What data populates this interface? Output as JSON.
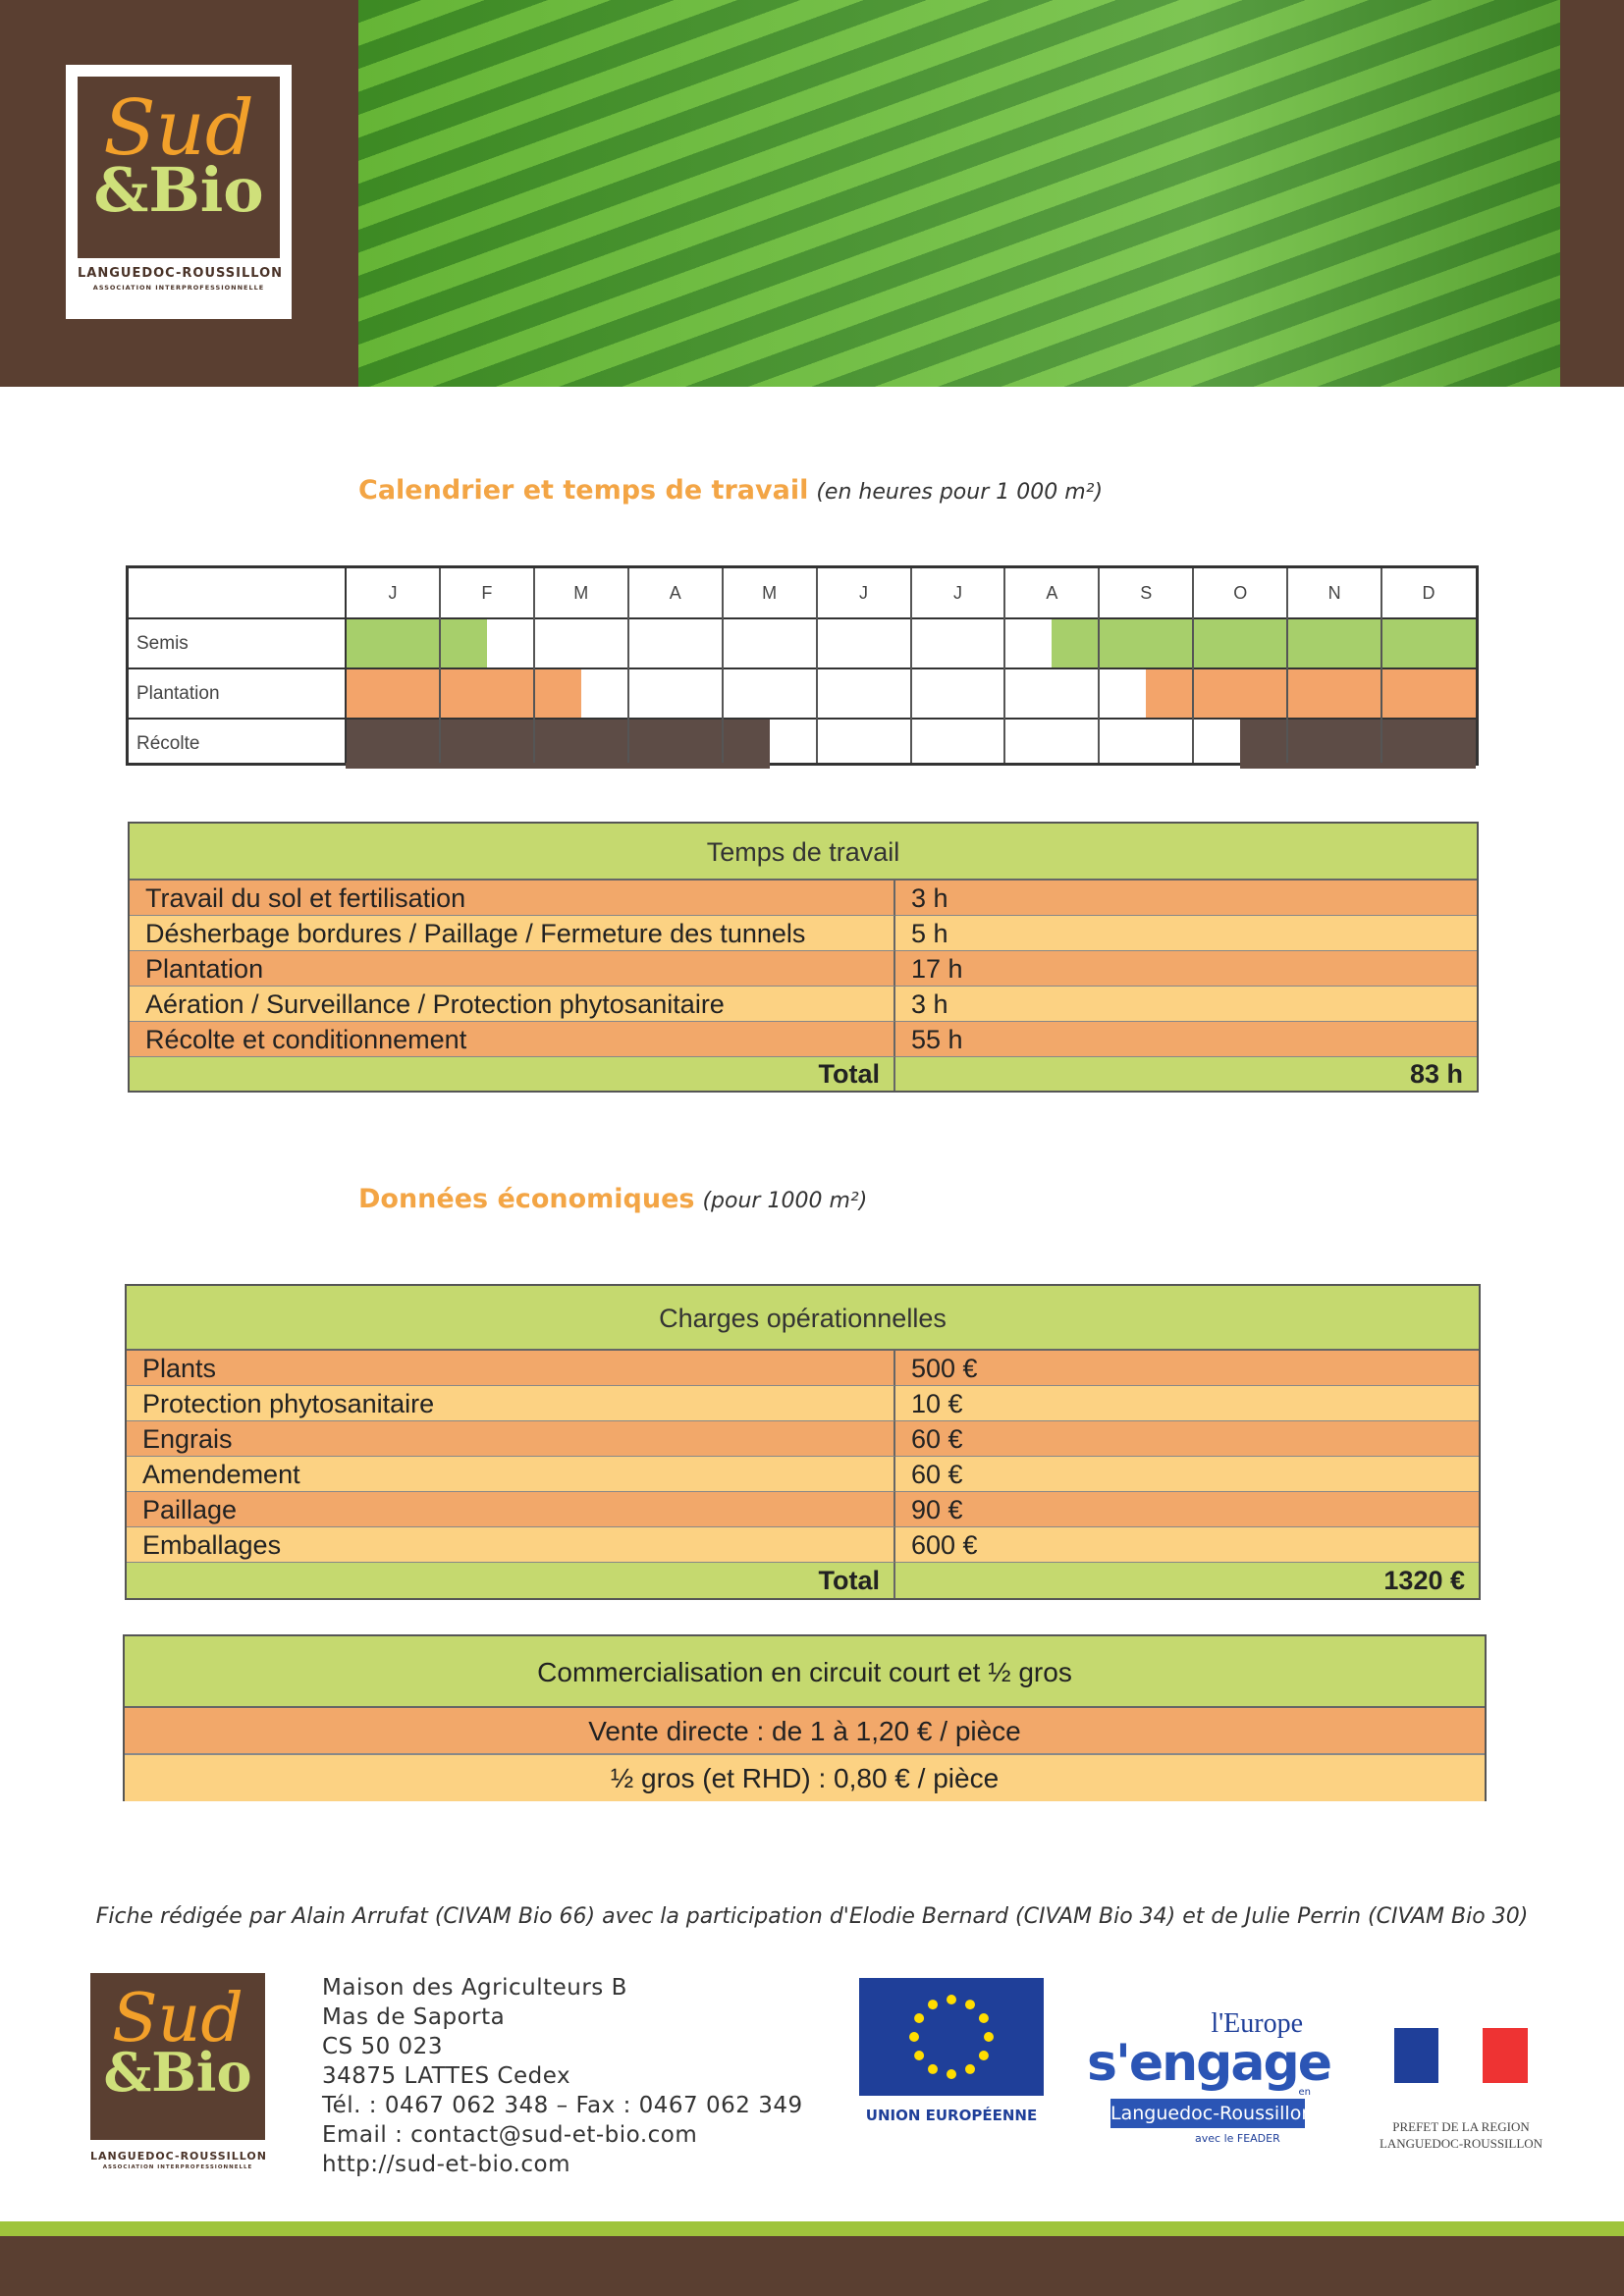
{
  "header": {
    "logo": {
      "line1": "Sud",
      "line2": "&Bio",
      "region": "LANGUEDOC-ROUSSILLON",
      "subtitle": "ASSOCIATION INTERPROFESSIONNELLE"
    }
  },
  "calendar": {
    "title": "Calendrier et temps de travail",
    "note": "(en heures pour 1 000 m²)",
    "months": [
      "J",
      "F",
      "M",
      "A",
      "M",
      "J",
      "J",
      "A",
      "S",
      "O",
      "N",
      "D"
    ],
    "rows": [
      {
        "label": "Semis",
        "color": "#a7cf6b",
        "periods": [
          [
            0,
            1.5
          ],
          [
            7.5,
            12
          ]
        ]
      },
      {
        "label": "Plantation",
        "color": "#f3a46a",
        "periods": [
          [
            0,
            2.5
          ],
          [
            8.5,
            12
          ]
        ]
      },
      {
        "label": "Récolte",
        "color": "#5d4c46",
        "periods": [
          [
            0,
            4.5
          ],
          [
            9.5,
            12
          ]
        ]
      }
    ]
  },
  "work_time": {
    "title": "Temps de travail",
    "rows": [
      [
        "Travail du sol et fertilisation",
        "3 h"
      ],
      [
        "Désherbage bordures / Paillage / Fermeture des tunnels",
        "5 h"
      ],
      [
        "Plantation",
        "17 h"
      ],
      [
        "Aération / Surveillance / Protection phytosanitaire",
        "3 h"
      ],
      [
        "Récolte et conditionnement",
        "55 h"
      ]
    ],
    "total_label": "Total",
    "total": "83 h"
  },
  "economics": {
    "title": "Données économiques",
    "note": "(pour 1000 m²)"
  },
  "charges": {
    "title": "Charges opérationnelles",
    "rows": [
      [
        "Plants",
        "500 €"
      ],
      [
        "Protection phytosanitaire",
        "10 €"
      ],
      [
        "Engrais",
        "60 €"
      ],
      [
        "Amendement",
        "60 €"
      ],
      [
        "Paillage",
        "90 €"
      ],
      [
        "Emballages",
        "600 €"
      ]
    ],
    "total_label": "Total",
    "total": "1320 €"
  },
  "sales": {
    "title": "Commercialisation en circuit court et ½ gros",
    "lines": [
      "Vente directe : de 1 à 1,20 € / pièce",
      "½ gros (et RHD) : 0,80 € / pièce"
    ]
  },
  "footer": {
    "credit": "Fiche rédigée par Alain Arrufat (CIVAM Bio 66) avec la participation d'Elodie Bernard (CIVAM Bio 34) et de Julie Perrin (CIVAM Bio 30)",
    "address": [
      "Maison des Agriculteurs B",
      "Mas de Saporta",
      "CS 50 023",
      "34875 LATTES Cedex",
      "Tél. : 0467 062 348 – Fax : 0467 062 349",
      "Email : contact@sud-et-bio.com",
      "http://sud-et-bio.com"
    ],
    "eu": "UNION EUROPÉENNE",
    "europe": [
      "l'Europe",
      "s'engage",
      "en",
      "Languedoc-Roussillon",
      "avec le FEADER"
    ],
    "prefet": [
      "PREFET DE LA REGION",
      "LANGUEDOC-ROUSSILLON"
    ]
  }
}
